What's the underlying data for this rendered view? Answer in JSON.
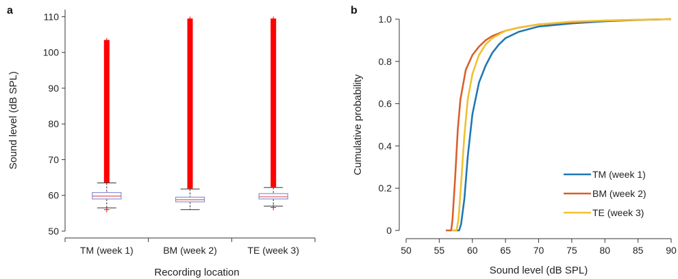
{
  "colors": {
    "axis": "#333333",
    "box": "#8a8fd6",
    "median": "#e05a5a",
    "outlier": "#ff0000",
    "tm": "#1f77b4",
    "bm": "#d95f2b",
    "te": "#f0c030"
  },
  "chart_data": [
    {
      "panel": "a",
      "type": "box",
      "xlabel": "Recording location",
      "ylabel": "Sound level (dB SPL)",
      "ylim": [
        50,
        112
      ],
      "yticks": [
        50,
        60,
        70,
        80,
        90,
        100,
        110
      ],
      "categories": [
        "TM (week 1)",
        "BM (week 2)",
        "TE (week 3)"
      ],
      "boxes": [
        {
          "q1": 59.0,
          "median": 59.8,
          "q3": 60.8,
          "whisker_low": 56.5,
          "whisker_high": 63.5,
          "outliers_low": [
            56.0
          ],
          "outliers_high_min": 63.6,
          "outliers_high_max": 103.5
        },
        {
          "q1": 58.2,
          "median": 58.8,
          "q3": 59.5,
          "whisker_low": 56.0,
          "whisker_high": 61.8,
          "outliers_low": [],
          "outliers_high_min": 61.9,
          "outliers_high_max": 109.5
        },
        {
          "q1": 59.0,
          "median": 59.6,
          "q3": 60.5,
          "whisker_low": 57.0,
          "whisker_high": 62.2,
          "outliers_low": [
            56.6
          ],
          "outliers_high_min": 62.3,
          "outliers_high_max": 109.5
        }
      ]
    },
    {
      "panel": "b",
      "type": "line",
      "xlabel": "Sound level (dB SPL)",
      "ylabel": "Cumulative probability",
      "xlim": [
        50,
        90
      ],
      "ylim": [
        0,
        1.0
      ],
      "xticks": [
        50,
        55,
        60,
        65,
        70,
        75,
        80,
        85,
        90
      ],
      "yticks": [
        0,
        0.2,
        0.4,
        0.6,
        0.8,
        1.0
      ],
      "ytick_labels": [
        "0",
        "0.2",
        "0.4",
        "0.6",
        "0.8",
        "1.0"
      ],
      "legend": "bottom-right",
      "series": [
        {
          "name": "TM (week 1)",
          "color": "#1f77b4",
          "x": [
            57.0,
            58.0,
            58.3,
            58.8,
            59.3,
            60.0,
            61.0,
            62.0,
            63.0,
            64.0,
            65.0,
            67.0,
            70.0,
            75.0,
            80.0,
            85.0,
            90.0
          ],
          "y": [
            0,
            0,
            0.03,
            0.15,
            0.35,
            0.55,
            0.7,
            0.78,
            0.84,
            0.88,
            0.91,
            0.94,
            0.965,
            0.98,
            0.99,
            0.996,
            1.0
          ]
        },
        {
          "name": "BM (week 2)",
          "color": "#d95f2b",
          "x": [
            56.0,
            56.8,
            57.0,
            57.4,
            57.8,
            58.2,
            59.0,
            60.0,
            61.0,
            62.0,
            63.0,
            65.0,
            67.0,
            70.0,
            75.0,
            80.0,
            85.0,
            90.0
          ],
          "y": [
            0,
            0,
            0.05,
            0.25,
            0.48,
            0.62,
            0.76,
            0.83,
            0.87,
            0.9,
            0.92,
            0.945,
            0.96,
            0.975,
            0.985,
            0.993,
            0.997,
            1.0
          ]
        },
        {
          "name": "TE (week 3)",
          "color": "#f0c030",
          "x": [
            57.0,
            57.6,
            57.9,
            58.3,
            58.8,
            59.3,
            60.0,
            61.0,
            62.0,
            63.0,
            65.0,
            67.0,
            70.0,
            75.0,
            80.0,
            85.0,
            90.0
          ],
          "y": [
            0,
            0,
            0.05,
            0.22,
            0.45,
            0.62,
            0.74,
            0.83,
            0.88,
            0.91,
            0.945,
            0.96,
            0.975,
            0.988,
            0.994,
            0.997,
            1.0
          ]
        }
      ]
    }
  ]
}
